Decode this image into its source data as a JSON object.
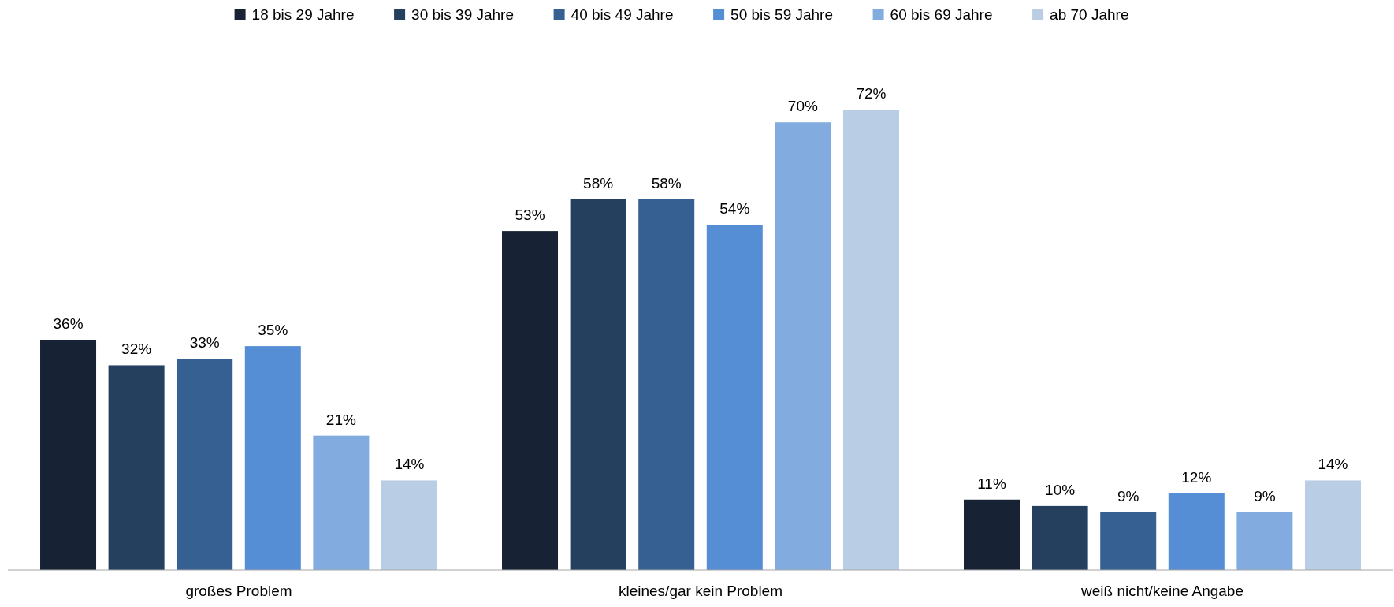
{
  "chart_data": {
    "type": "bar",
    "categories": [
      "großes Problem",
      "kleines/gar kein Problem",
      "weiß nicht/keine Angabe"
    ],
    "series": [
      {
        "name": "18 bis 29 Jahre",
        "color": "#172334",
        "values": [
          36,
          53,
          11
        ],
        "value_labels": [
          "36%",
          "53%",
          "11%"
        ]
      },
      {
        "name": "30 bis 39 Jahre",
        "color": "#253f5f",
        "values": [
          32,
          58,
          10
        ],
        "value_labels": [
          "32%",
          "58%",
          "10%"
        ]
      },
      {
        "name": "40 bis 49 Jahre",
        "color": "#366091",
        "values": [
          33,
          58,
          9
        ],
        "value_labels": [
          "33%",
          "58%",
          "9%"
        ]
      },
      {
        "name": "50 bis 59 Jahre",
        "color": "#558ed5",
        "values": [
          35,
          54,
          12
        ],
        "value_labels": [
          "35%",
          "54%",
          "12%"
        ]
      },
      {
        "name": "60 bis 69 Jahre",
        "color": "#82ace0",
        "values": [
          21,
          70,
          9
        ],
        "value_labels": [
          "21%",
          "70%",
          "9%"
        ]
      },
      {
        "name": "ab 70 Jahre",
        "color": "#b9cde5",
        "values": [
          14,
          72,
          14
        ],
        "value_labels": [
          "14%",
          "72%",
          "14%"
        ]
      }
    ],
    "legend": "top"
  }
}
